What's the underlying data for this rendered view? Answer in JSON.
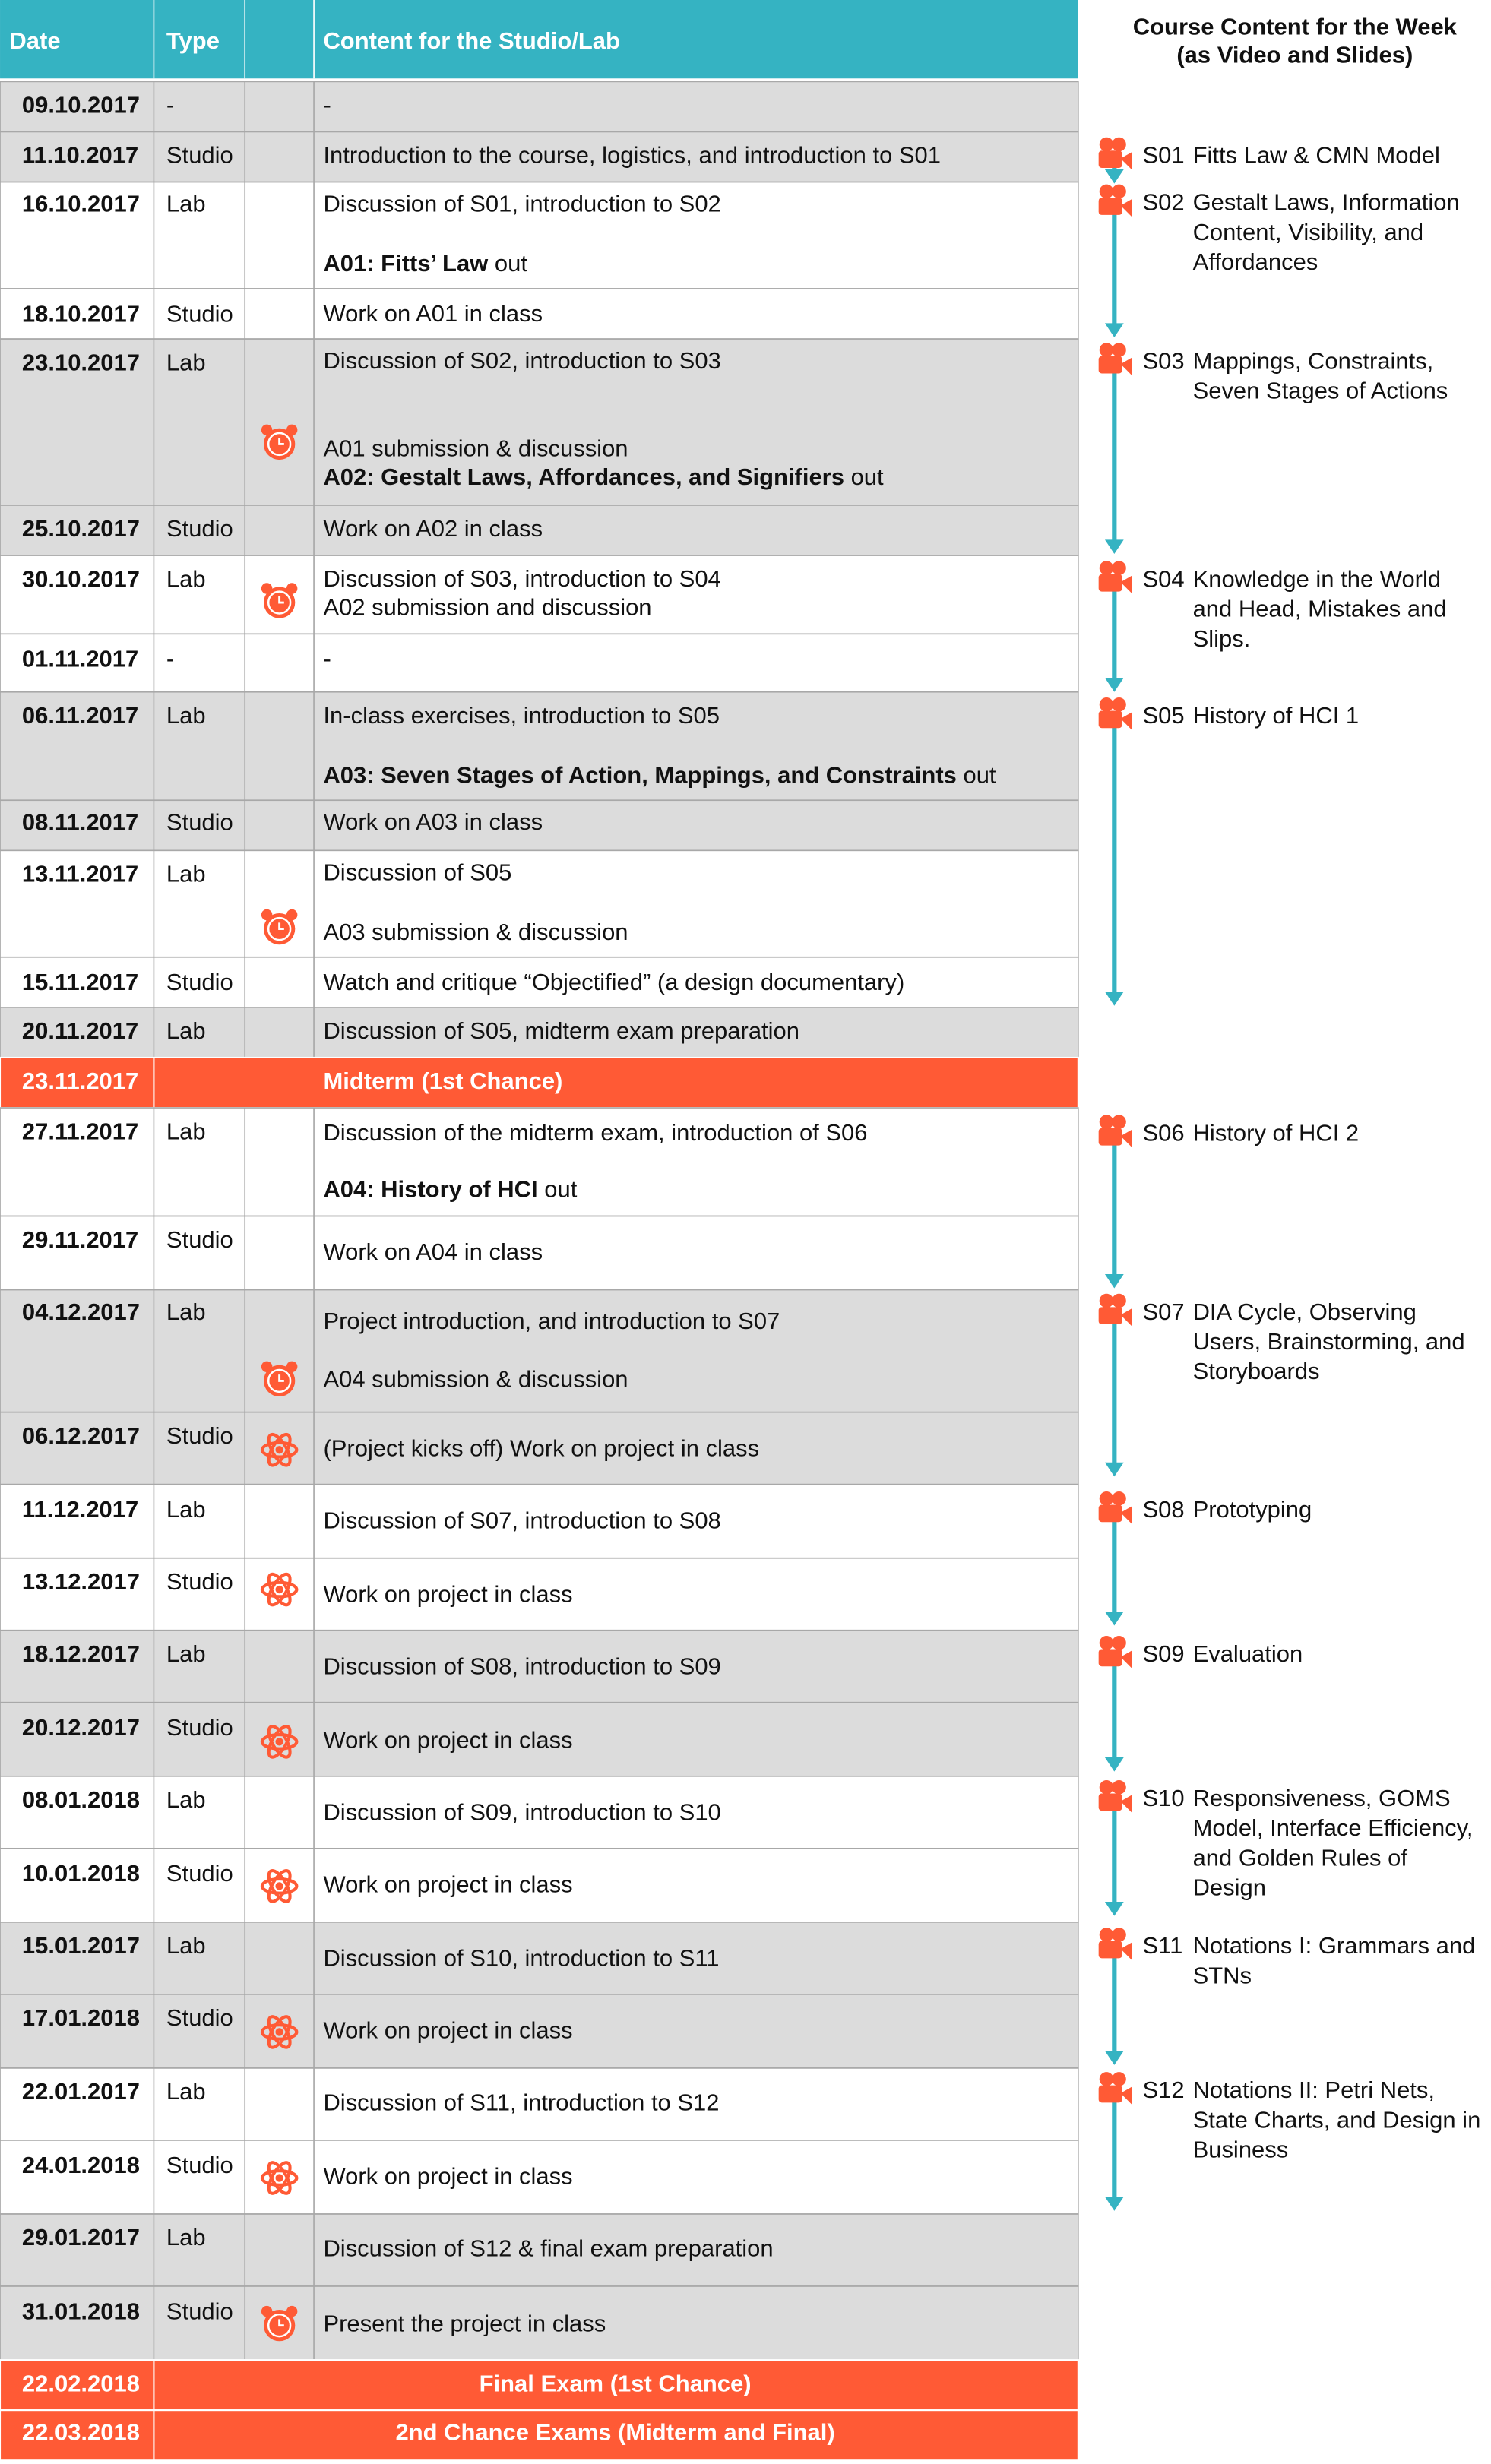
{
  "table": {
    "header": [
      "Date",
      "Type",
      "Content for the Studio/Lab"
    ],
    "rows": [
      {
        "date": "09.10.2017",
        "type": "-",
        "lines": [
          [
            {
              "text": "-"
            }
          ]
        ]
      },
      {
        "date": "11.10.2017",
        "type": "Studio",
        "lines": [
          [
            {
              "text": "Introduction to the course, logistics, and introduction to S01"
            }
          ]
        ]
      },
      {
        "date": "16.10.2017",
        "type": "Lab",
        "lines": [
          [
            {
              "text": "Discussion of S01, introduction to S02"
            }
          ],
          [
            {
              "text": "A01: Fitts’ Law",
              "bold": true
            },
            {
              "text": " out"
            }
          ]
        ]
      },
      {
        "date": "18.10.2017",
        "type": "Studio",
        "lines": [
          [
            {
              "text": "Work on A01 in class"
            }
          ]
        ]
      },
      {
        "date": "23.10.2017",
        "type": "Lab",
        "lines": [
          [
            {
              "text": "Discussion of S02, introduction to S03"
            }
          ],
          [
            {
              "text": "A01 submission & discussion"
            }
          ],
          [
            {
              "text": "A02: Gestalt Laws, Affordances, and Signifiers",
              "bold": true
            },
            {
              "text": " out"
            }
          ]
        ]
      },
      {
        "date": "25.10.2017",
        "type": "Studio",
        "lines": [
          [
            {
              "text": "Work on A02 in class"
            }
          ]
        ]
      },
      {
        "date": "30.10.2017",
        "type": "Lab",
        "lines": [
          [
            {
              "text": "Discussion of S03, introduction to S04"
            }
          ],
          [
            {
              "text": "A02 submission and discussion"
            }
          ]
        ]
      },
      {
        "date": "01.11.2017",
        "type": "-",
        "lines": [
          [
            {
              "text": "-"
            }
          ]
        ]
      },
      {
        "date": "06.11.2017",
        "type": "Lab",
        "lines": [
          [
            {
              "text": "In-class exercises, introduction to S05"
            }
          ],
          [
            {
              "text": "A03: Seven Stages of Action, Mappings, and Constraints",
              "bold": true
            },
            {
              "text": " out"
            }
          ]
        ]
      },
      {
        "date": "08.11.2017",
        "type": "Studio",
        "lines": [
          [
            {
              "text": "Work on A03 in class"
            }
          ]
        ]
      },
      {
        "date": "13.11.2017",
        "type": "Lab",
        "lines": [
          [
            {
              "text": "Discussion of S05"
            }
          ],
          [
            {
              "text": "A03 submission & discussion"
            }
          ]
        ]
      },
      {
        "date": "15.11.2017",
        "type": "Studio",
        "lines": [
          [
            {
              "text": "Watch and critique “Objectified” (a design documentary)"
            }
          ]
        ]
      },
      {
        "date": "20.11.2017",
        "type": "Lab",
        "lines": [
          [
            {
              "text": "Discussion of S05, midterm exam preparation"
            }
          ]
        ]
      },
      {
        "date": "23.11.2017",
        "banner": "Midterm (1st Chance)"
      },
      {
        "date": "27.11.2017",
        "type": "Lab",
        "lines": [
          [
            {
              "text": "Discussion of the midterm exam, introduction of S06"
            }
          ],
          [
            {
              "text": "A04: History of HCI",
              "bold": true
            },
            {
              "text": " out"
            }
          ]
        ]
      },
      {
        "date": "29.11.2017",
        "type": "Studio",
        "lines": [
          [
            {
              "text": "Work on A04 in class"
            }
          ]
        ]
      },
      {
        "date": "04.12.2017",
        "type": "Lab",
        "lines": [
          [
            {
              "text": "Project introduction, and introduction to S07"
            }
          ],
          [
            {
              "text": "A04 submission & discussion"
            }
          ]
        ]
      },
      {
        "date": "06.12.2017",
        "type": "Studio",
        "lines": [
          [
            {
              "text": "(Project kicks off) Work on project in class"
            }
          ]
        ]
      },
      {
        "date": "11.12.2017",
        "type": "Lab",
        "lines": [
          [
            {
              "text": "Discussion of S07, introduction to S08"
            }
          ]
        ]
      },
      {
        "date": "13.12.2017",
        "type": "Studio",
        "lines": [
          [
            {
              "text": "Work on project in class"
            }
          ]
        ]
      },
      {
        "date": "18.12.2017",
        "type": "Lab",
        "lines": [
          [
            {
              "text": "Discussion of S08, introduction to S09"
            }
          ]
        ]
      },
      {
        "date": "20.12.2017",
        "type": "Studio",
        "lines": [
          [
            {
              "text": "Work on project in class"
            }
          ]
        ]
      },
      {
        "date": "08.01.2018",
        "type": "Lab",
        "lines": [
          [
            {
              "text": "Discussion of S09, introduction to S10"
            }
          ]
        ]
      },
      {
        "date": "10.01.2018",
        "type": "Studio",
        "lines": [
          [
            {
              "text": "Work on project in class"
            }
          ]
        ]
      },
      {
        "date": "15.01.2017",
        "type": "Lab",
        "lines": [
          [
            {
              "text": "Discussion of S10, introduction to S11"
            }
          ]
        ]
      },
      {
        "date": "17.01.2018",
        "type": "Studio",
        "lines": [
          [
            {
              "text": "Work on project in class"
            }
          ]
        ]
      },
      {
        "date": "22.01.2017",
        "type": "Lab",
        "lines": [
          [
            {
              "text": "Discussion of S11, introduction to S12"
            }
          ]
        ]
      },
      {
        "date": "24.01.2018",
        "type": "Studio",
        "lines": [
          [
            {
              "text": "Work on project in class"
            }
          ]
        ]
      },
      {
        "date": "29.01.2017",
        "type": "Lab",
        "lines": [
          [
            {
              "text": "Discussion of S12 & final exam preparation"
            }
          ]
        ]
      },
      {
        "date": "31.01.2018",
        "type": "Studio",
        "lines": [
          [
            {
              "text": "Present the project in class"
            }
          ]
        ]
      },
      {
        "date": "22.02.2018",
        "banner": "Final Exam (1st Chance)"
      },
      {
        "date": "22.03.2018",
        "banner": "2nd Chance Exams (Midterm and Final)"
      }
    ]
  },
  "panel": {
    "title": [
      "Course Content for the Week",
      "(as Video and Slides)"
    ],
    "items": [
      {
        "code": "S01",
        "lines": [
          "Fitts Law & CMN Model"
        ]
      },
      {
        "code": "S02",
        "lines": [
          "Gestalt Laws, Information",
          "Content, Visibility, and",
          "Affordances"
        ]
      },
      {
        "code": "S03",
        "lines": [
          "Mappings, Constraints,",
          "Seven Stages of Actions"
        ]
      },
      {
        "code": "S04",
        "lines": [
          "Knowledge in the World",
          "and Head, Mistakes and",
          "Slips."
        ]
      },
      {
        "code": "S05",
        "lines": [
          "History of HCI 1"
        ]
      },
      {
        "code": "S06",
        "lines": [
          "History of HCI 2"
        ]
      },
      {
        "code": "S07",
        "lines": [
          "DIA Cycle, Observing",
          "Users, Brainstorming, and",
          "Storyboards"
        ]
      },
      {
        "code": "S08",
        "lines": [
          "Prototyping"
        ]
      },
      {
        "code": "S09",
        "lines": [
          "Evaluation"
        ]
      },
      {
        "code": "S10",
        "lines": [
          "Responsiveness, GOMS",
          "Model, Interface Efficiency,",
          "and Golden Rules of",
          "Design"
        ]
      },
      {
        "code": "S11",
        "lines": [
          "Notations I: Grammars and",
          "STNs"
        ]
      },
      {
        "code": "S12",
        "lines": [
          "Notations II: Petri Nets,",
          "State Charts, and Design in",
          "Business"
        ]
      }
    ]
  }
}
